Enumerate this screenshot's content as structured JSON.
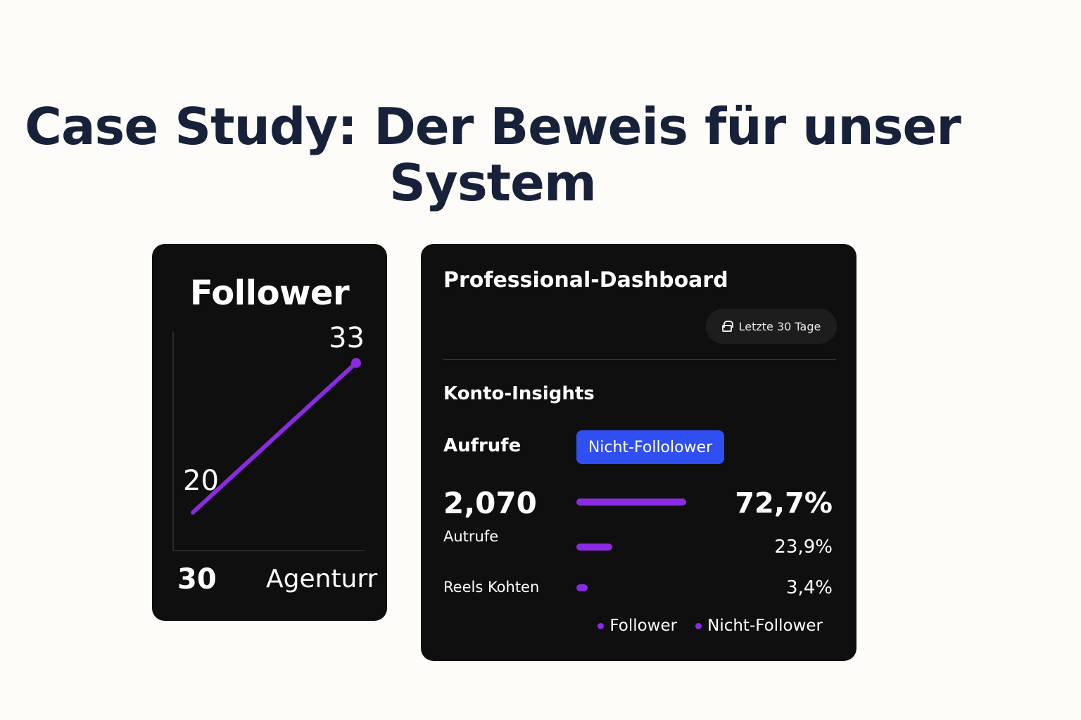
{
  "page": {
    "title_line1": "Case Study: Der Beweis für unser",
    "title_line2": "System"
  },
  "follower_card": {
    "title": "Follower",
    "footer_left": "30",
    "footer_right": "Agenturr",
    "line_color": "#8a2be2"
  },
  "chart_data": {
    "type": "line",
    "title": "Follower",
    "x": [
      0,
      1
    ],
    "series": [
      {
        "values": [
          20,
          33
        ],
        "data_labels": [
          "20",
          "33"
        ]
      }
    ],
    "ylim": [
      14,
      36
    ],
    "xlim": [
      0,
      1
    ],
    "grid": false,
    "color": "#8a2be2"
  },
  "dashboard": {
    "title": "Professional-Dashboard",
    "date_range": "Letzte 30 Tage",
    "date_icon": "lock-icon",
    "section_title": "Konto-Insights",
    "row_label": "Aufrufe",
    "tab_label": "Nicht-Follolower",
    "tab_color": "#2f4ff0",
    "total_value": "2,070",
    "total_label": "Autrufe",
    "reels_label": "Reels Kohten",
    "bars": [
      {
        "fraction": 0.727,
        "percent_label": "72,7%"
      },
      {
        "fraction": 0.239,
        "percent_label": "23,9%"
      },
      {
        "fraction": 0.034,
        "percent_label": "3,4%"
      }
    ],
    "bar_color": "#8a2be2",
    "legend": [
      {
        "label": "Follower",
        "color": "#8a2be2"
      },
      {
        "label": "Nicht-Follower",
        "color": "#8a2be2"
      }
    ]
  }
}
